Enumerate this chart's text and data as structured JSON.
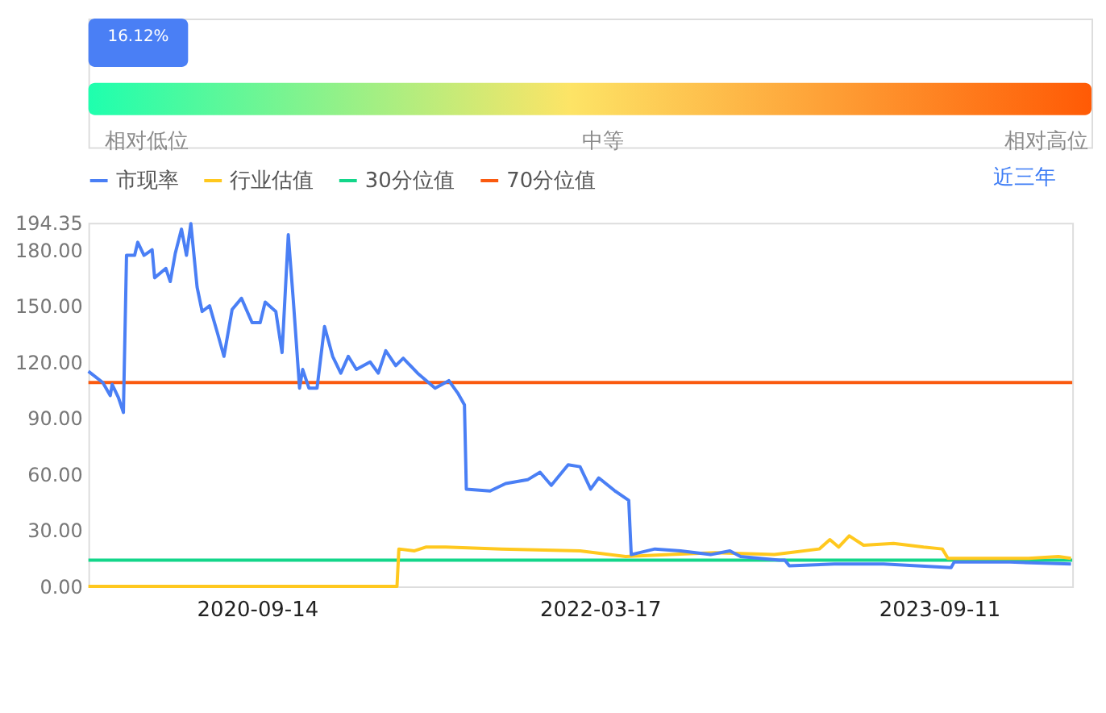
{
  "chart_data": [
    {
      "type": "other",
      "annotations": [
        "16.12%",
        "相对低位",
        "中等",
        "相对高位"
      ]
    },
    {
      "type": "line",
      "legend": "top",
      "marker": "none",
      "line_style": "solid",
      "grid": false,
      "annotations": [
        "近三年"
      ],
      "xlim": [
        "2019-12-19",
        "2024-04-11"
      ],
      "xticks": [
        "2020-09-14",
        "2022-03-17",
        "2023-09-11"
      ],
      "ylim": [
        0,
        194.35
      ],
      "yticks": [
        {
          "value": 0,
          "label": "0.00"
        },
        {
          "value": 30,
          "label": "30.00"
        },
        {
          "value": 60,
          "label": "60.00"
        },
        {
          "value": 90,
          "label": "90.00"
        },
        {
          "value": 120,
          "label": "120.00"
        },
        {
          "value": 150,
          "label": "150.00"
        },
        {
          "value": 180,
          "label": "180.00"
        },
        194.35
      ],
      "series": [
        {
          "name": "70分位值",
          "color": "#fa5a0f",
          "x": [
            "2019-12-19",
            "2024-04-11"
          ],
          "values": [
            109,
            109
          ]
        },
        {
          "name": "30分位值",
          "color": "#13d68a",
          "x": [
            "2019-12-19",
            "2024-04-11"
          ],
          "values": [
            14,
            14
          ]
        },
        {
          "name": "行业估值",
          "color": "#ffc81e",
          "x": [
            "2019-12-19",
            "2021-04-26",
            "2021-04-29",
            "2021-05-24",
            "2021-06-11",
            "2021-07-13",
            "2021-10-10",
            "2022-02-13",
            "2022-04-27",
            "2022-07-07",
            "2022-09-17",
            "2022-12-21",
            "2023-01-14",
            "2023-03-03",
            "2023-03-20",
            "2023-04-03",
            "2023-04-20",
            "2023-05-13",
            "2023-06-30",
            "2023-08-17",
            "2023-09-16",
            "2023-09-25",
            "2023-11-22",
            "2024-02-01",
            "2024-03-20",
            "2024-04-09"
          ],
          "values": [
            0,
            0,
            20,
            19,
            21,
            21,
            20,
            19,
            16,
            17,
            18,
            17,
            18,
            20,
            25,
            21,
            27,
            22,
            23,
            21,
            20,
            15,
            15,
            15,
            16,
            15
          ]
        },
        {
          "name": "市现率",
          "color": "#4a7ff5",
          "x": [
            "2019-12-19",
            "2020-01-11",
            "2020-01-23",
            "2020-01-26",
            "2020-02-05",
            "2020-02-13",
            "2020-02-18",
            "2020-03-02",
            "2020-03-07",
            "2020-03-17",
            "2020-03-30",
            "2020-04-03",
            "2020-04-21",
            "2020-04-28",
            "2020-05-06",
            "2020-05-16",
            "2020-05-24",
            "2020-05-31",
            "2020-06-10",
            "2020-06-18",
            "2020-06-30",
            "2020-07-13",
            "2020-07-23",
            "2020-08-05",
            "2020-08-20",
            "2020-09-06",
            "2020-09-19",
            "2020-09-27",
            "2020-10-14",
            "2020-10-24",
            "2020-11-03",
            "2020-11-11",
            "2020-11-21",
            "2020-11-26",
            "2020-12-06",
            "2020-12-19",
            "2020-12-31",
            "2021-01-13",
            "2021-01-26",
            "2021-02-07",
            "2021-02-20",
            "2021-03-14",
            "2021-03-27",
            "2021-04-08",
            "2021-04-24",
            "2021-05-06",
            "2021-05-29",
            "2021-06-26",
            "2021-07-18",
            "2021-08-02",
            "2021-08-12",
            "2021-08-15",
            "2021-09-22",
            "2021-10-17",
            "2021-11-21",
            "2021-12-11",
            "2021-12-29",
            "2022-01-25",
            "2022-02-13",
            "2022-03-02",
            "2022-03-15",
            "2022-04-10",
            "2022-05-02",
            "2022-05-06",
            "2022-06-13",
            "2022-07-24",
            "2022-09-10",
            "2022-10-11",
            "2022-10-28",
            "2022-12-29",
            "2023-01-07",
            "2023-01-14",
            "2023-03-27",
            "2023-06-14",
            "2023-09-30",
            "2023-10-05",
            "2024-01-02",
            "2024-04-09"
          ],
          "values": [
            115,
            109,
            102,
            108,
            101,
            93,
            177,
            177,
            184,
            177,
            180,
            165,
            170,
            163,
            178,
            191,
            177,
            194,
            160,
            147,
            150,
            135,
            123,
            148,
            154,
            141,
            141,
            152,
            147,
            125,
            188,
            153,
            106,
            116,
            106,
            106,
            139,
            123,
            114,
            123,
            116,
            120,
            114,
            126,
            118,
            122,
            114,
            106,
            110,
            103,
            97,
            52,
            51,
            55,
            57,
            61,
            54,
            65,
            64,
            52,
            58,
            51,
            46,
            17,
            20,
            19,
            17,
            19,
            16,
            14,
            14,
            11,
            12,
            12,
            10,
            13,
            13,
            12
          ]
        }
      ]
    }
  ]
}
